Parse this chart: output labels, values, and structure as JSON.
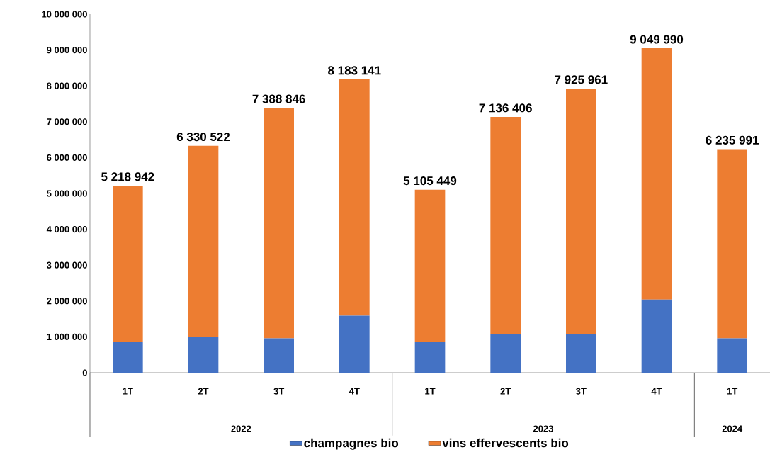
{
  "chart_data": {
    "type": "bar",
    "stacked": true,
    "categories": [
      "1T",
      "2T",
      "3T",
      "4T",
      "1T",
      "2T",
      "3T",
      "4T",
      "1T"
    ],
    "series": [
      {
        "name": "champagnes bio",
        "color": "#4472c4",
        "values": [
          870000,
          1000000,
          960000,
          1590000,
          850000,
          1080000,
          1080000,
          2040000,
          960000
        ]
      },
      {
        "name": "vins effervescents bio",
        "color": "#ed7d31",
        "values": [
          4348942,
          5330522,
          6428846,
          6593141,
          4255449,
          6056406,
          6845961,
          7009990,
          5275991
        ]
      }
    ],
    "totals": [
      "5 218 942",
      "6 330 522",
      "7 388 846",
      "8 183 141",
      "5 105 449",
      "7 136 406",
      "7 925 961",
      "9 049 990",
      "6 235 991"
    ],
    "annotations": [
      "2022",
      "2023",
      "2024"
    ],
    "ylim": [
      0,
      10000000
    ],
    "yticks": [
      {
        "value": 0,
        "label": "0"
      },
      {
        "value": 1000000,
        "label": "1 000 000"
      },
      {
        "value": 2000000,
        "label": "2 000 000"
      },
      {
        "value": 3000000,
        "label": "3 000 000"
      },
      {
        "value": 4000000,
        "label": "4 000 000"
      },
      {
        "value": 5000000,
        "label": "5 000 000"
      },
      {
        "value": 6000000,
        "label": "6 000 000"
      },
      {
        "value": 7000000,
        "label": "7 000 000"
      },
      {
        "value": 8000000,
        "label": "8 000 000"
      },
      {
        "value": 9000000,
        "label": "9 000 000"
      },
      {
        "value": 10000000,
        "label": "10 000 000"
      }
    ],
    "grid": false,
    "legend": "bottom"
  }
}
